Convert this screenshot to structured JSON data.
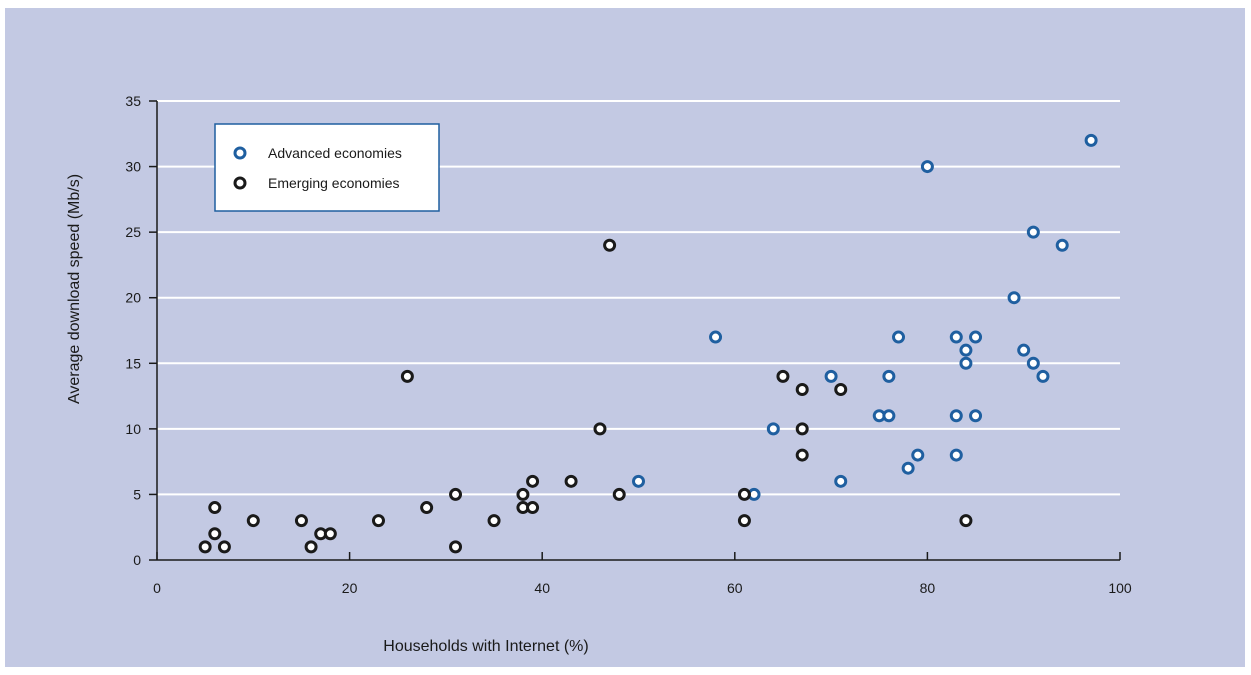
{
  "chart_data": {
    "type": "scatter",
    "xlabel": "Households with Internet (%)",
    "ylabel": "Average download speed (Mb/s)",
    "xlim": [
      0,
      100
    ],
    "ylim": [
      0,
      35
    ],
    "xticks": [
      0,
      20,
      40,
      60,
      80,
      100
    ],
    "yticks": [
      0,
      5,
      10,
      15,
      20,
      25,
      30,
      35
    ],
    "grid": "horizontal",
    "legend_position": "top-left",
    "series": [
      {
        "name": "Advanced economies",
        "color": "#1f5fa0",
        "points": [
          [
            97,
            32
          ],
          [
            80,
            30
          ],
          [
            91,
            25
          ],
          [
            94,
            24
          ],
          [
            89,
            20
          ],
          [
            58,
            17
          ],
          [
            77,
            17
          ],
          [
            83,
            17
          ],
          [
            85,
            17
          ],
          [
            84,
            16
          ],
          [
            90,
            16
          ],
          [
            84,
            15
          ],
          [
            91,
            15
          ],
          [
            70,
            14
          ],
          [
            76,
            14
          ],
          [
            92,
            14
          ],
          [
            75,
            11
          ],
          [
            76,
            11
          ],
          [
            83,
            11
          ],
          [
            85,
            11
          ],
          [
            64,
            10
          ],
          [
            79,
            8
          ],
          [
            83,
            8
          ],
          [
            78,
            7
          ],
          [
            50,
            6
          ],
          [
            71,
            6
          ],
          [
            62,
            5
          ]
        ]
      },
      {
        "name": "Emerging economies",
        "color": "#1a1a1a",
        "points": [
          [
            47,
            24
          ],
          [
            26,
            14
          ],
          [
            65,
            14
          ],
          [
            67,
            13
          ],
          [
            71,
            13
          ],
          [
            46,
            10
          ],
          [
            67,
            10
          ],
          [
            67,
            8
          ],
          [
            39,
            6
          ],
          [
            43,
            6
          ],
          [
            31,
            5
          ],
          [
            38,
            5
          ],
          [
            48,
            5
          ],
          [
            61,
            5
          ],
          [
            28,
            4
          ],
          [
            38,
            4
          ],
          [
            39,
            4
          ],
          [
            6,
            4
          ],
          [
            10,
            3
          ],
          [
            15,
            3
          ],
          [
            23,
            3
          ],
          [
            35,
            3
          ],
          [
            61,
            3
          ],
          [
            84,
            3
          ],
          [
            6,
            2
          ],
          [
            17,
            2
          ],
          [
            18,
            2
          ],
          [
            5,
            1
          ],
          [
            7,
            1
          ],
          [
            16,
            1
          ],
          [
            31,
            1
          ]
        ]
      }
    ]
  }
}
